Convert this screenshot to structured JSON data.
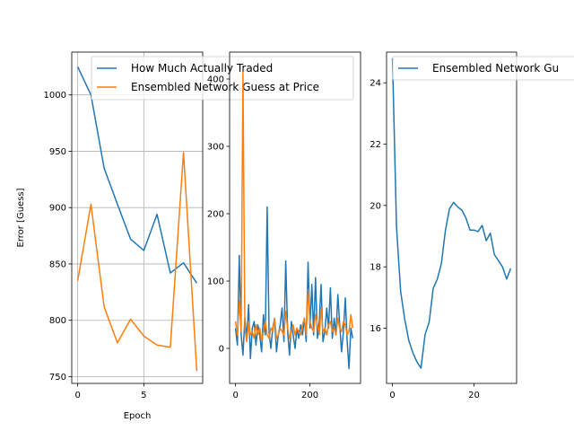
{
  "chart_data": [
    {
      "type": "line",
      "xlabel": "Epoch",
      "ylabel": "Error [Guess]",
      "xlim": [
        -0.45,
        9.45
      ],
      "ylim": [
        744,
        1038
      ],
      "xticks": [
        0,
        5
      ],
      "yticks": [
        750,
        800,
        850,
        900,
        950,
        1000
      ],
      "grid": true,
      "legend": "top-right",
      "series": [
        {
          "name": "How Much Actually Traded",
          "color": "#1f77b4",
          "x": [
            0,
            1,
            2,
            3,
            4,
            5,
            6,
            7,
            8,
            9
          ],
          "y": [
            1025,
            1000,
            935,
            903,
            872,
            862,
            894,
            842,
            851,
            833
          ]
        },
        {
          "name": "Ensembled Network Guess at Price",
          "color": "#ff7f0e",
          "x": [
            0,
            1,
            2,
            3,
            4,
            5,
            6,
            7,
            8,
            9
          ],
          "y": [
            835,
            903,
            812,
            780,
            801,
            786,
            778,
            776,
            949,
            755
          ]
        }
      ]
    },
    {
      "type": "line",
      "xlim": [
        -16,
        336
      ],
      "ylim": [
        -52,
        440
      ],
      "xticks": [
        0,
        200
      ],
      "yticks": [
        0,
        100,
        200,
        300,
        400
      ],
      "grid": false,
      "series": [
        {
          "name": "",
          "color": "#1f77b4",
          "x": [
            0,
            5,
            10,
            15,
            20,
            25,
            30,
            35,
            40,
            45,
            50,
            55,
            60,
            65,
            70,
            75,
            80,
            85,
            90,
            95,
            100,
            105,
            110,
            115,
            120,
            125,
            130,
            135,
            140,
            145,
            150,
            155,
            160,
            165,
            170,
            175,
            180,
            185,
            190,
            195,
            200,
            205,
            210,
            215,
            220,
            225,
            230,
            235,
            240,
            245,
            250,
            255,
            260,
            265,
            270,
            275,
            280,
            285,
            290,
            295,
            300,
            305,
            310,
            315
          ],
          "y": [
            30,
            5,
            138,
            20,
            -10,
            45,
            15,
            65,
            -15,
            30,
            40,
            5,
            35,
            20,
            -5,
            50,
            20,
            210,
            25,
            0,
            30,
            45,
            -5,
            20,
            35,
            60,
            10,
            130,
            25,
            -10,
            40,
            20,
            0,
            30,
            15,
            35,
            20,
            45,
            10,
            128,
            30,
            95,
            20,
            105,
            15,
            40,
            95,
            10,
            25,
            60,
            30,
            90,
            15,
            45,
            20,
            80,
            35,
            -5,
            25,
            75,
            10,
            -30,
            30,
            15
          ]
        },
        {
          "name": "",
          "color": "#ff7f0e",
          "x": [
            0,
            5,
            10,
            15,
            20,
            25,
            30,
            35,
            40,
            45,
            50,
            55,
            60,
            65,
            70,
            75,
            80,
            85,
            90,
            95,
            100,
            105,
            110,
            115,
            120,
            125,
            130,
            135,
            140,
            145,
            150,
            155,
            160,
            165,
            170,
            175,
            180,
            185,
            190,
            195,
            200,
            205,
            210,
            215,
            220,
            225,
            230,
            235,
            240,
            245,
            250,
            255,
            260,
            265,
            270,
            275,
            280,
            285,
            290,
            295,
            300,
            305,
            310,
            315
          ],
          "y": [
            40,
            20,
            70,
            25,
            410,
            30,
            10,
            40,
            20,
            25,
            15,
            35,
            20,
            30,
            10,
            25,
            40,
            20,
            15,
            30,
            25,
            45,
            15,
            20,
            30,
            25,
            20,
            55,
            30,
            15,
            25,
            35,
            20,
            30,
            25,
            20,
            35,
            45,
            20,
            88,
            40,
            30,
            25,
            50,
            35,
            20,
            60,
            25,
            30,
            20,
            35,
            40,
            25,
            30,
            20,
            45,
            30,
            25,
            40,
            35,
            20,
            25,
            50,
            30
          ]
        }
      ]
    },
    {
      "type": "line",
      "xlim": [
        -1.45,
        30.45
      ],
      "ylim": [
        14.2,
        25.0
      ],
      "xticks": [
        0,
        20
      ],
      "yticks": [
        16,
        18,
        20,
        22,
        24
      ],
      "grid": false,
      "legend": "top-right",
      "series": [
        {
          "name": "Ensembled Network Gu",
          "color": "#1f77b4",
          "x": [
            0,
            1,
            2,
            3,
            4,
            5,
            6,
            7,
            8,
            9,
            10,
            11,
            12,
            13,
            14,
            15,
            16,
            17,
            18,
            19,
            20,
            21,
            22,
            23,
            24,
            25,
            26,
            27,
            28,
            29
          ],
          "y": [
            24.8,
            19.3,
            17.2,
            16.3,
            15.6,
            15.2,
            14.9,
            14.7,
            15.8,
            16.2,
            17.3,
            17.6,
            18.1,
            19.2,
            19.9,
            20.1,
            19.95,
            19.85,
            19.6,
            19.2,
            19.2,
            19.15,
            19.35,
            18.85,
            19.1,
            18.4,
            18.2,
            18.0,
            17.6,
            17.95
          ]
        }
      ]
    }
  ]
}
